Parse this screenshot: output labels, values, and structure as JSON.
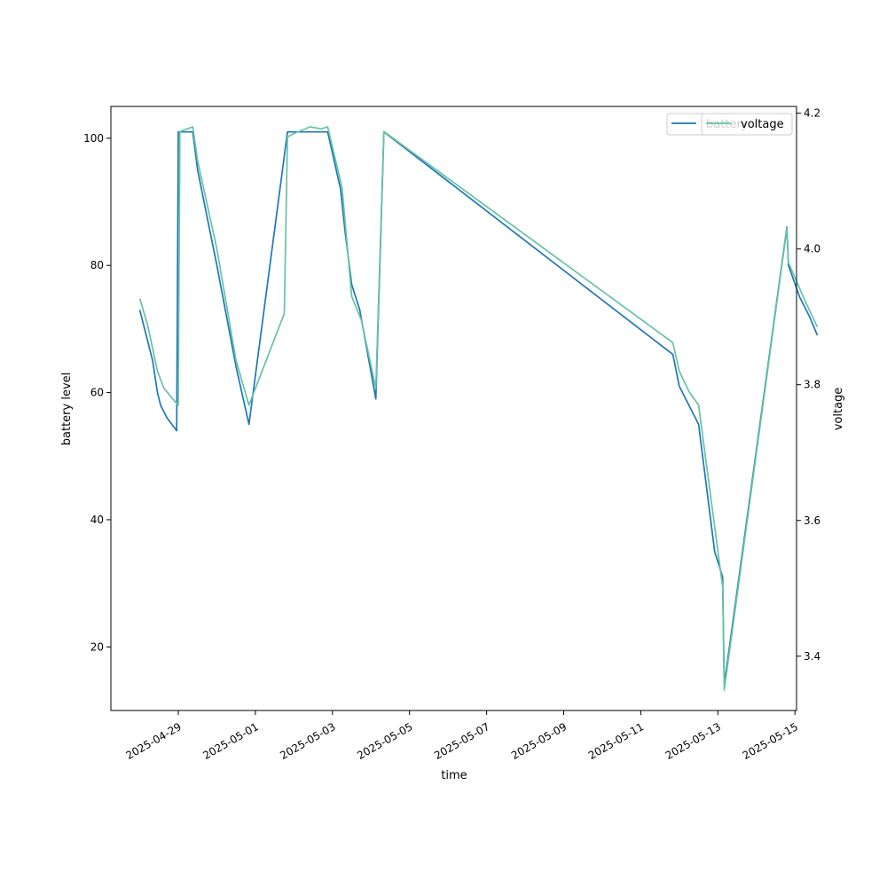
{
  "chart_data": {
    "type": "line",
    "xlabel": "time",
    "ylabel_left": "battery level",
    "ylabel_right": "voltage",
    "xlim": [
      "2025-04-27T06:00",
      "2025-05-15T01:00"
    ],
    "ylim_left": [
      10,
      105
    ],
    "ylim_right": [
      3.32,
      4.21
    ],
    "x_ticks": [
      "2025-04-29",
      "2025-05-01",
      "2025-05-03",
      "2025-05-05",
      "2025-05-07",
      "2025-05-09",
      "2025-05-11",
      "2025-05-13",
      "2025-05-15"
    ],
    "y_ticks_left": [
      20,
      40,
      60,
      80,
      100
    ],
    "y_ticks_right": [
      3.4,
      3.6,
      3.8,
      4.0,
      4.2
    ],
    "grid": false,
    "legends": [
      {
        "placement": "top-right",
        "entries": [
          "battery"
        ]
      },
      {
        "placement": "top-right",
        "entries": [
          "voltage"
        ]
      }
    ],
    "series": [
      {
        "name": "battery",
        "axis": "left",
        "color": "#1f77b4",
        "points": [
          [
            "2025-04-28T00:00",
            73
          ],
          [
            "2025-04-28T08:00",
            65
          ],
          [
            "2025-04-28T11:00",
            60
          ],
          [
            "2025-04-28T13:00",
            58
          ],
          [
            "2025-04-28T15:00",
            57
          ],
          [
            "2025-04-28T17:00",
            56
          ],
          [
            "2025-04-28T23:00",
            54
          ],
          [
            "2025-04-29T00:00",
            101
          ],
          [
            "2025-04-29T09:00",
            101
          ],
          [
            "2025-04-29T12:00",
            95
          ],
          [
            "2025-04-30T00:00",
            80
          ],
          [
            "2025-04-30T12:00",
            64
          ],
          [
            "2025-04-30T20:00",
            55
          ],
          [
            "2025-05-01T20:00",
            101
          ],
          [
            "2025-05-02T00:00",
            101
          ],
          [
            "2025-05-02T21:00",
            101
          ],
          [
            "2025-05-03T05:00",
            92
          ],
          [
            "2025-05-03T08:00",
            85
          ],
          [
            "2025-05-03T12:00",
            77
          ],
          [
            "2025-05-03T17:00",
            73
          ],
          [
            "2025-05-04T03:00",
            59
          ],
          [
            "2025-05-04T08:00",
            101
          ],
          [
            "2025-05-11T20:00",
            66
          ],
          [
            "2025-05-12T00:00",
            61
          ],
          [
            "2025-05-12T06:00",
            58
          ],
          [
            "2025-05-12T12:00",
            55
          ],
          [
            "2025-05-12T22:00",
            35
          ],
          [
            "2025-05-13T03:00",
            31
          ],
          [
            "2025-05-13T04:00",
            14
          ],
          [
            "2025-05-14T19:00",
            86
          ],
          [
            "2025-05-14T20:00",
            80
          ],
          [
            "2025-05-15T03:00",
            75
          ],
          [
            "2025-05-15T09:00",
            72
          ],
          [
            "2025-05-15T14:00",
            69
          ]
        ]
      },
      {
        "name": "voltage",
        "axis": "right",
        "color": "#66c2a5",
        "points": [
          [
            "2025-04-28T00:00",
            3.927
          ],
          [
            "2025-04-28T05:00",
            3.887
          ],
          [
            "2025-04-28T11:00",
            3.82
          ],
          [
            "2025-04-28T15:00",
            3.795
          ],
          [
            "2025-04-28T22:00",
            3.775
          ],
          [
            "2025-04-29T00:00",
            3.77
          ],
          [
            "2025-04-29T01:00",
            4.173
          ],
          [
            "2025-04-29T09:00",
            4.18
          ],
          [
            "2025-04-29T12:00",
            4.13
          ],
          [
            "2025-04-30T00:00",
            4.0
          ],
          [
            "2025-04-30T12:00",
            3.835
          ],
          [
            "2025-04-30T20:00",
            3.77
          ],
          [
            "2025-05-01T18:00",
            3.905
          ],
          [
            "2025-05-01T20:00",
            4.165
          ],
          [
            "2025-05-02T00:00",
            4.17
          ],
          [
            "2025-05-02T10:00",
            4.18
          ],
          [
            "2025-05-02T17:00",
            4.177
          ],
          [
            "2025-05-02T21:00",
            4.18
          ],
          [
            "2025-05-03T06:00",
            4.09
          ],
          [
            "2025-05-03T12:00",
            3.93
          ],
          [
            "2025-05-03T18:00",
            3.895
          ],
          [
            "2025-05-04T03:00",
            3.795
          ],
          [
            "2025-05-04T08:00",
            4.173
          ],
          [
            "2025-05-11T20:00",
            3.862
          ],
          [
            "2025-05-12T00:00",
            3.82
          ],
          [
            "2025-05-12T06:00",
            3.79
          ],
          [
            "2025-05-12T12:00",
            3.77
          ],
          [
            "2025-05-13T03:00",
            3.502
          ],
          [
            "2025-05-13T04:00",
            3.35
          ],
          [
            "2025-05-14T19:00",
            4.03
          ],
          [
            "2025-05-14T20:00",
            3.98
          ],
          [
            "2025-05-15T06:00",
            3.925
          ],
          [
            "2025-05-15T14:00",
            3.885
          ]
        ]
      }
    ]
  }
}
